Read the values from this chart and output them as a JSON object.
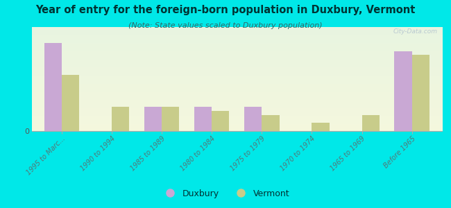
{
  "title": "Year of entry for the foreign-born population in Duxbury, Vermont",
  "subtitle": "(Note: State values scaled to Duxbury population)",
  "categories": [
    "1995 to Marc...",
    "1990 to 1994",
    "1985 to 1989",
    "1980 to 1984",
    "1975 to 1979",
    "1970 to 1974",
    "1965 to 1969",
    "Before 1965"
  ],
  "duxbury": [
    11,
    0,
    3,
    3,
    3,
    0,
    0,
    10
  ],
  "vermont": [
    7,
    3,
    3,
    2.5,
    2,
    1,
    2,
    9.5
  ],
  "duxbury_color": "#c9a8d4",
  "vermont_color": "#c8cc8a",
  "bg_color": "#00e8e8",
  "bar_width": 0.35,
  "ylim": [
    0,
    13
  ],
  "watermark": "City-Data.com",
  "legend_duxbury": "Duxbury",
  "legend_vermont": "Vermont",
  "title_color": "#003333",
  "subtitle_color": "#336666",
  "tick_color": "#557777"
}
